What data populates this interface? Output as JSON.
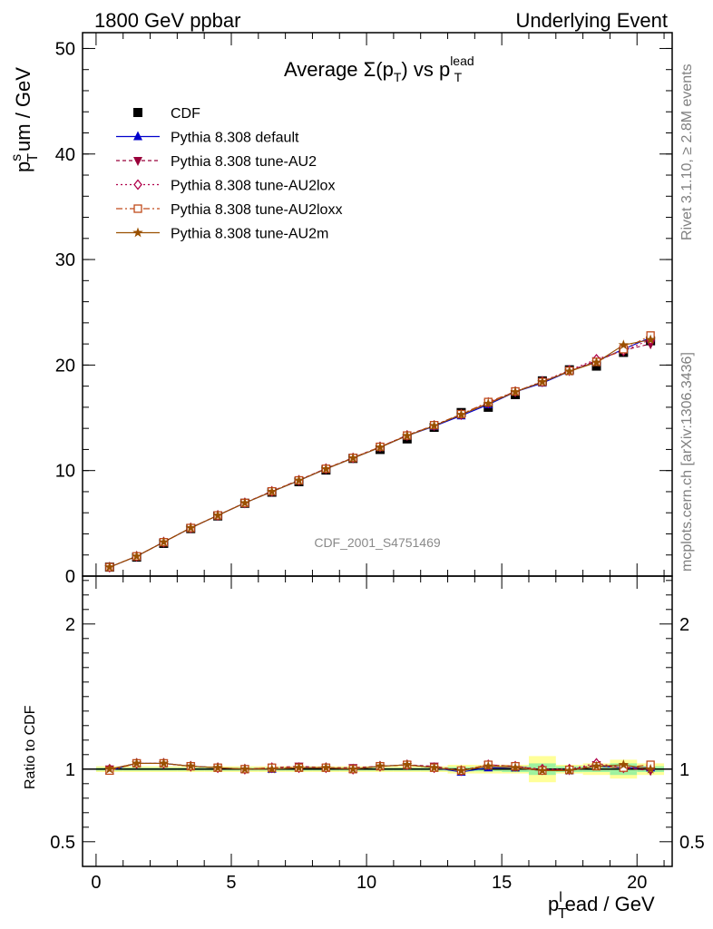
{
  "header": {
    "left": "1800 GeV ppbar",
    "right": "Underlying Event"
  },
  "side_labels": {
    "rivet": "Rivet 3.1.10, ≥ 2.8M events",
    "mcplots": "mcplots.cern.ch [arXiv:1306.3436]"
  },
  "watermark": "CDF_2001_S4751469",
  "chart_data": [
    {
      "type": "scatter",
      "title": {
        "main": "Average Σ(p",
        "sub": "T",
        "mid": ") vs p",
        "sup": "lead",
        "sub2": "T"
      },
      "ylabel": {
        "base": "p",
        "sup": "s",
        "sub": "T",
        "rest": "um / GeV"
      },
      "xlim": [
        -0.5,
        21.3
      ],
      "ylim": [
        0,
        51.5
      ],
      "yticks": [
        0,
        10,
        20,
        30,
        40,
        50
      ],
      "ytick_labels": [
        "0",
        "10",
        "20",
        "30",
        "40",
        "50"
      ],
      "legend_placement": "top-left",
      "x": [
        0.5,
        1.5,
        2.5,
        3.5,
        4.5,
        5.5,
        6.5,
        7.5,
        8.5,
        9.5,
        10.5,
        11.5,
        12.5,
        13.5,
        14.5,
        15.5,
        16.5,
        17.5,
        18.5,
        19.5,
        20.5
      ],
      "series": [
        {
          "name": "CDF",
          "marker": "square",
          "color": "#000000",
          "dash": "none",
          "values": [
            0.85,
            1.8,
            3.1,
            4.5,
            5.7,
            6.9,
            7.95,
            8.95,
            10.05,
            11.15,
            12.0,
            13.0,
            14.1,
            15.5,
            16.0,
            17.2,
            18.5,
            19.55,
            19.9,
            21.2,
            22.3
          ]
        },
        {
          "name": "Pythia 8.308 default",
          "marker": "triangle-up",
          "color": "#0000cc",
          "dash": "none",
          "values": [
            0.84,
            1.87,
            3.22,
            4.56,
            5.75,
            6.93,
            8.0,
            9.05,
            10.15,
            11.18,
            12.2,
            13.3,
            14.2,
            15.2,
            16.25,
            17.45,
            18.3,
            19.4,
            20.35,
            21.5,
            22.6
          ]
        },
        {
          "name": "Pythia 8.308 tune-AU2",
          "marker": "triangle-down",
          "color": "#99003a",
          "dash": "4,3",
          "values": [
            0.85,
            1.88,
            3.23,
            4.58,
            5.76,
            6.95,
            8.05,
            9.1,
            10.2,
            11.22,
            12.25,
            13.35,
            14.3,
            15.3,
            16.4,
            17.5,
            18.4,
            19.45,
            20.4,
            21.4,
            22.0
          ]
        },
        {
          "name": "Pythia 8.308 tune-AU2lox",
          "marker": "diamond-open",
          "color": "#b0004a",
          "dash": "2,3",
          "values": [
            0.85,
            1.88,
            3.22,
            4.57,
            5.76,
            6.94,
            8.03,
            9.08,
            10.18,
            11.2,
            12.25,
            13.33,
            14.28,
            15.32,
            16.45,
            17.48,
            18.45,
            19.5,
            20.55,
            21.35,
            22.4
          ]
        },
        {
          "name": "Pythia 8.308 tune-AU2loxx",
          "marker": "square-open",
          "color": "#c04a1a",
          "dash": "7,3,2,3",
          "values": [
            0.85,
            1.87,
            3.21,
            4.56,
            5.75,
            6.93,
            8.03,
            9.07,
            10.17,
            11.2,
            12.25,
            13.32,
            14.3,
            15.35,
            16.5,
            17.5,
            18.4,
            19.45,
            20.3,
            21.5,
            22.8
          ]
        },
        {
          "name": "Pythia 8.308 tune-AU2m",
          "marker": "star",
          "color": "#9a5000",
          "dash": "none",
          "values": [
            0.85,
            1.88,
            3.22,
            4.57,
            5.75,
            6.93,
            8.0,
            9.06,
            10.15,
            11.18,
            12.2,
            13.3,
            14.25,
            15.3,
            16.35,
            17.45,
            18.4,
            19.4,
            20.25,
            21.9,
            22.4
          ]
        }
      ]
    },
    {
      "type": "scatter",
      "ylabel": "Ratio to CDF",
      "xlabel": {
        "base": "p",
        "sup": "l",
        "sub": "T",
        "rest": "ead / GeV"
      },
      "xlim": [
        -0.5,
        21.3
      ],
      "ylim": [
        0.33,
        2.33
      ],
      "yticks": [
        0.5,
        1,
        2
      ],
      "ytick_labels": [
        "0.5",
        "1",
        "2"
      ],
      "xticks": [
        0,
        5,
        10,
        15,
        20
      ],
      "xtick_labels": [
        "0",
        "5",
        "10",
        "15",
        "20"
      ],
      "reference_line": 1,
      "band_colors": {
        "inner": "#9ff29f",
        "outer": "#ffff99"
      },
      "bands_x": [
        0.5,
        1.5,
        2.5,
        3.5,
        4.5,
        5.5,
        6.5,
        7.5,
        8.5,
        9.5,
        10.5,
        11.5,
        12.5,
        13.5,
        14.5,
        15.5,
        16.5,
        17.5,
        18.5,
        19.5,
        20.5
      ],
      "bands_inner": [
        0.01,
        0.01,
        0.01,
        0.01,
        0.01,
        0.01,
        0.01,
        0.01,
        0.01,
        0.01,
        0.01,
        0.01,
        0.01,
        0.015,
        0.015,
        0.02,
        0.04,
        0.02,
        0.02,
        0.04,
        0.02
      ],
      "bands_outer": [
        0.02,
        0.02,
        0.02,
        0.02,
        0.02,
        0.02,
        0.02,
        0.02,
        0.02,
        0.02,
        0.02,
        0.02,
        0.02,
        0.03,
        0.03,
        0.03,
        0.09,
        0.03,
        0.04,
        0.065,
        0.04
      ],
      "series": [
        {
          "name": "Pythia 8.308 default",
          "marker": "triangle-up",
          "color": "#0000cc",
          "dash": "none",
          "values": [
            0.99,
            1.04,
            1.04,
            1.02,
            1.01,
            1.0,
            1.0,
            1.01,
            1.01,
            1.0,
            1.02,
            1.03,
            1.01,
            0.98,
            1.01,
            1.01,
            0.99,
            0.99,
            1.02,
            1.01,
            1.01
          ]
        },
        {
          "name": "Pythia 8.308 tune-AU2",
          "marker": "triangle-down",
          "color": "#99003a",
          "dash": "4,3",
          "values": [
            1.0,
            1.04,
            1.04,
            1.02,
            1.01,
            1.0,
            1.01,
            1.02,
            1.01,
            1.01,
            1.02,
            1.03,
            1.02,
            0.99,
            1.03,
            1.02,
            0.995,
            0.995,
            1.03,
            1.01,
            0.99
          ]
        },
        {
          "name": "Pythia 8.308 tune-AU2lox",
          "marker": "diamond-open",
          "color": "#b0004a",
          "dash": "2,3",
          "values": [
            1.0,
            1.04,
            1.04,
            1.02,
            1.01,
            1.0,
            1.01,
            1.01,
            1.01,
            1.0,
            1.02,
            1.03,
            1.01,
            0.99,
            1.03,
            1.02,
            1.0,
            1.0,
            1.04,
            1.01,
            1.005
          ]
        },
        {
          "name": "Pythia 8.308 tune-AU2loxx",
          "marker": "square-open",
          "color": "#c04a1a",
          "dash": "7,3,2,3",
          "values": [
            0.99,
            1.04,
            1.04,
            1.02,
            1.01,
            1.0,
            1.01,
            1.01,
            1.01,
            1.0,
            1.02,
            1.03,
            1.01,
            0.99,
            1.03,
            1.02,
            0.99,
            0.995,
            1.02,
            1.01,
            1.03
          ]
        },
        {
          "name": "Pythia 8.308 tune-AU2m",
          "marker": "star",
          "color": "#9a5000",
          "dash": "none",
          "values": [
            1.0,
            1.04,
            1.04,
            1.02,
            1.01,
            1.0,
            1.0,
            1.01,
            1.01,
            1.0,
            1.02,
            1.03,
            1.01,
            0.99,
            1.02,
            1.01,
            0.99,
            0.99,
            1.02,
            1.03,
            1.0
          ]
        }
      ]
    }
  ]
}
